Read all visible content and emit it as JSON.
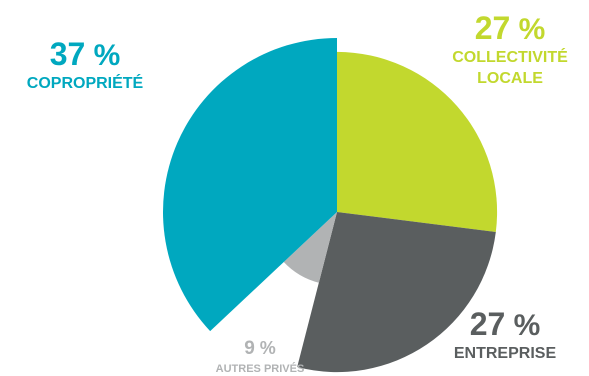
{
  "chart_data": {
    "type": "pie",
    "start_angle_deg": 0,
    "direction": "clockwise",
    "slices": [
      {
        "value": 27,
        "label": "COLLECTIVITÉ LOCALE",
        "pct_number": "27",
        "pct_sign": "%",
        "color": "#c2d82e",
        "radius_fraction": 0.92
      },
      {
        "value": 27,
        "label": "ENTREPRISE",
        "pct_number": "27",
        "pct_sign": "%",
        "color": "#5a5e5f",
        "radius_fraction": 0.92
      },
      {
        "value": 9,
        "label": "AUTRES PRIVÉS",
        "pct_number": "9",
        "pct_sign": "%",
        "color": "#b1b3b4",
        "radius_fraction": 0.42
      },
      {
        "value": 37,
        "label": "COPROPRIÉTÉ",
        "pct_number": "37",
        "pct_sign": "%",
        "color": "#00a8bf",
        "radius_fraction": 1.0
      }
    ]
  }
}
